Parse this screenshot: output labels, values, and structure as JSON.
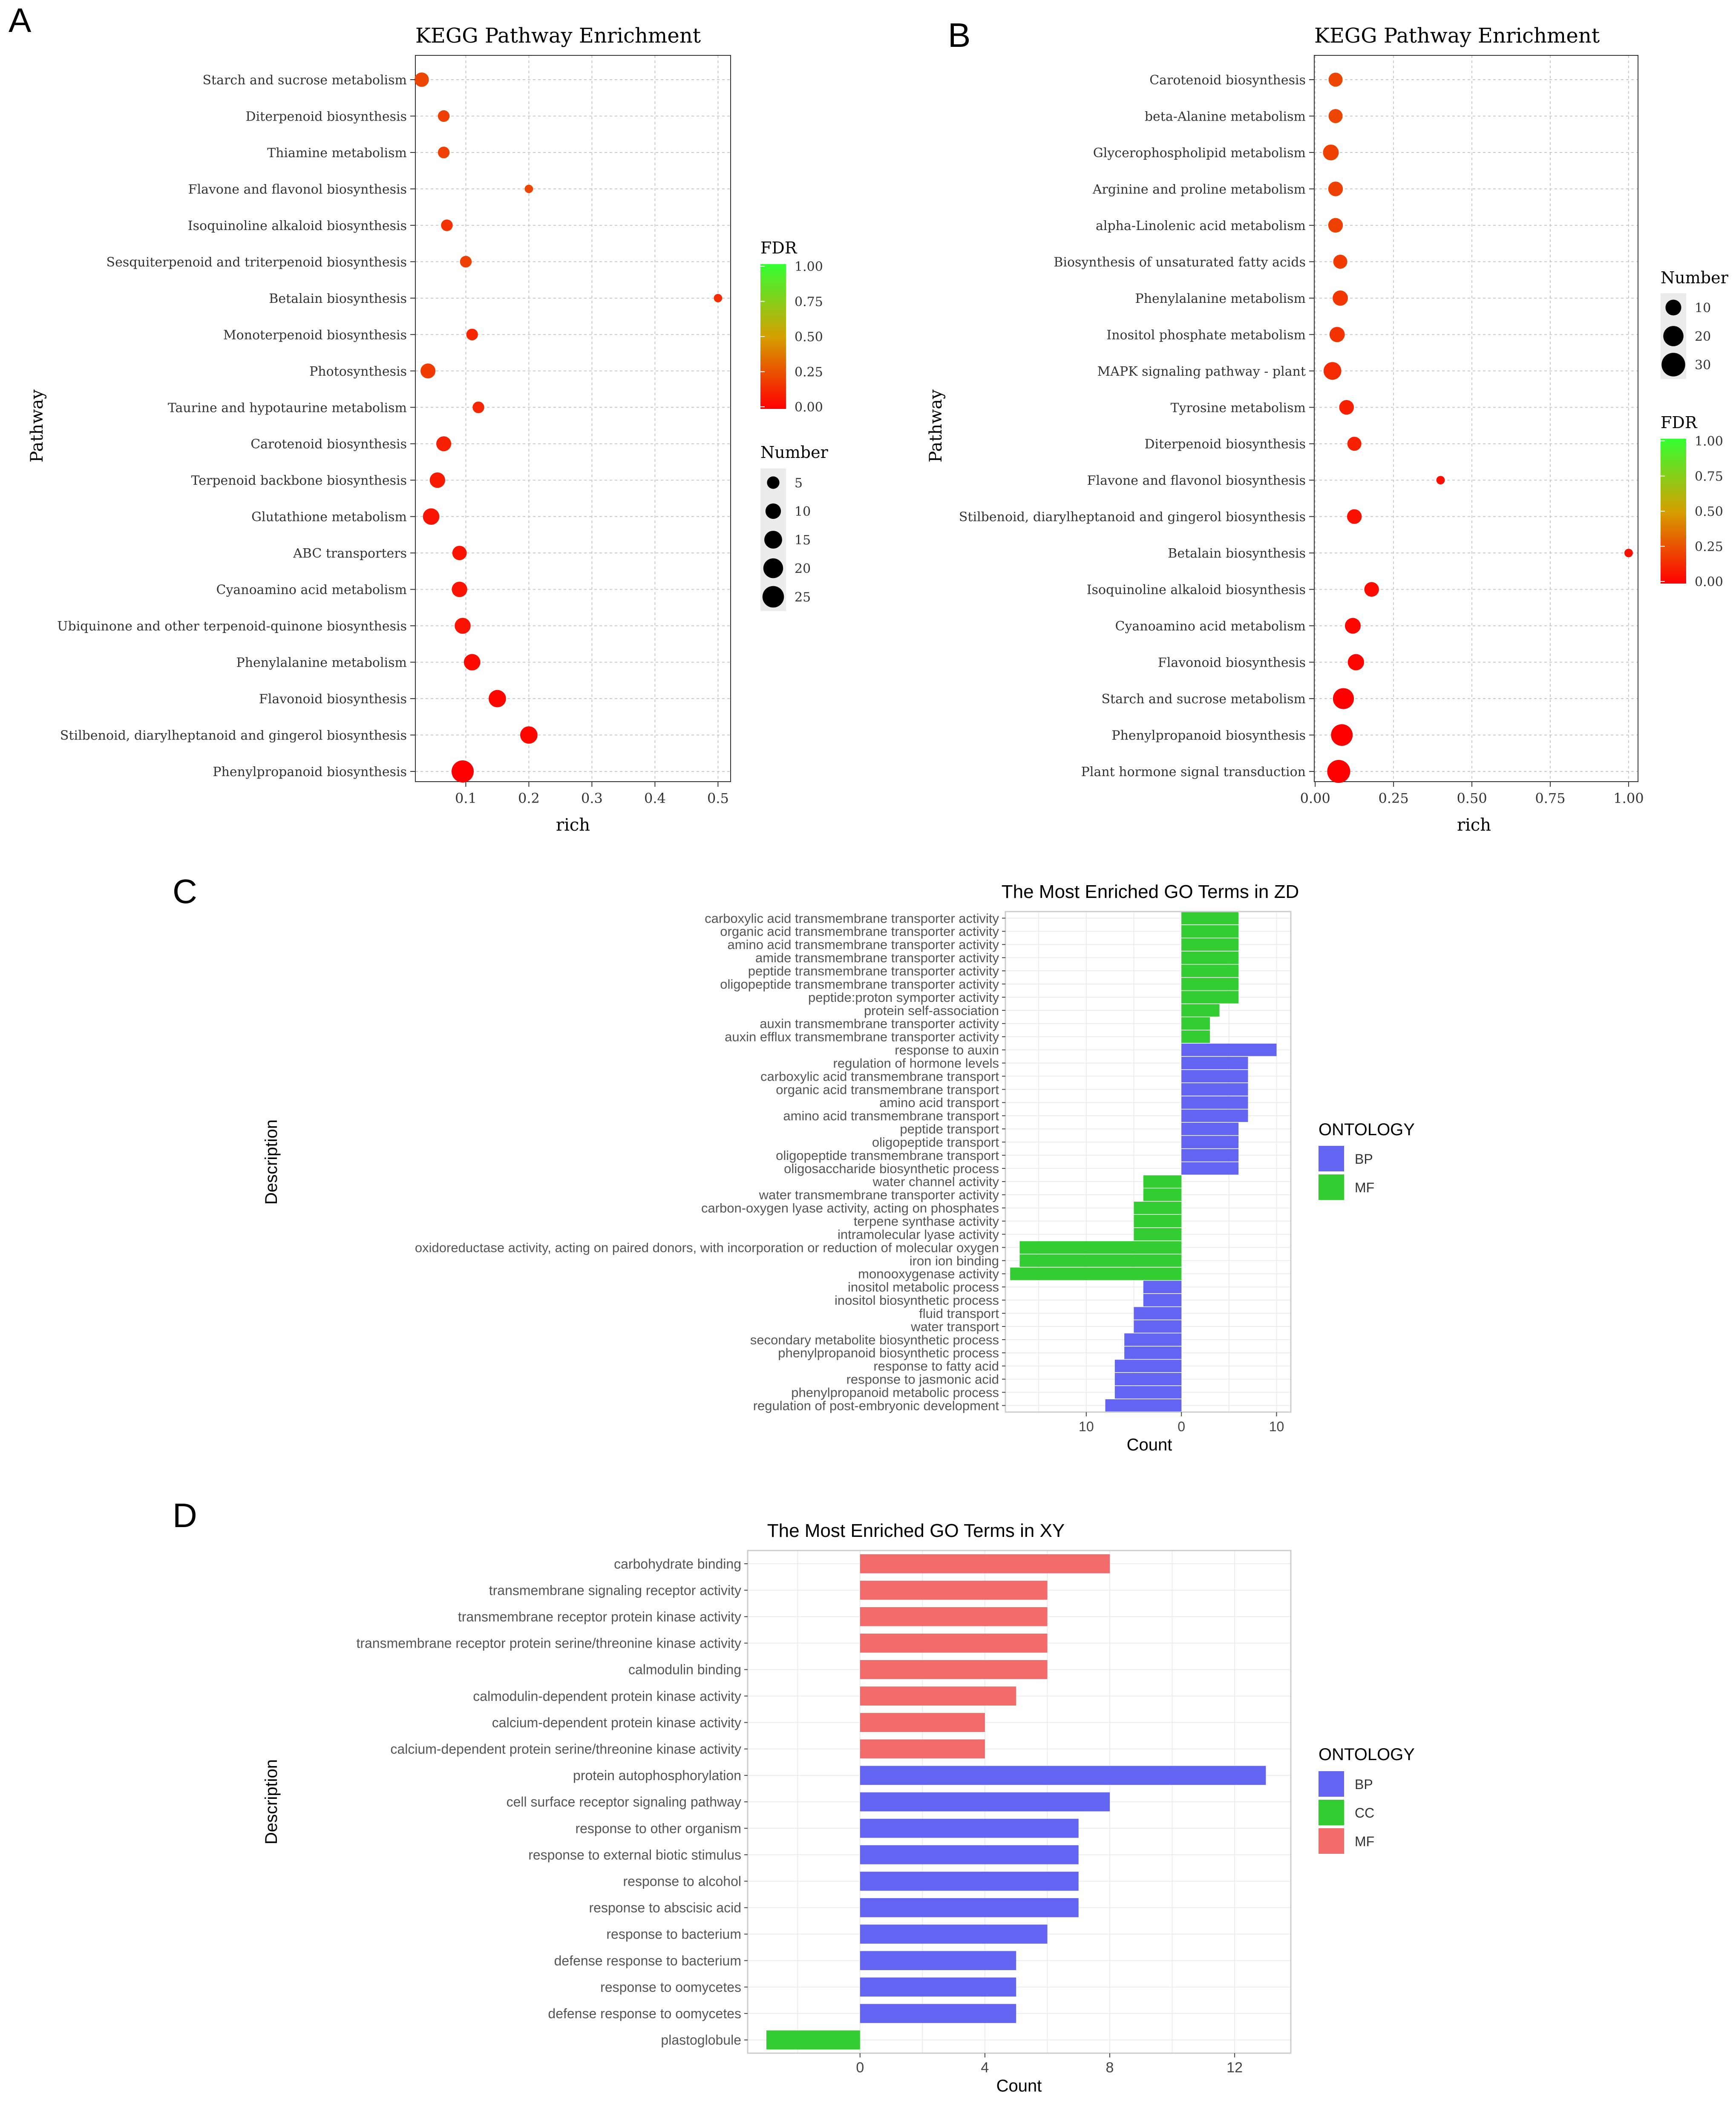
{
  "panel_labels": {
    "a": "A",
    "b": "B",
    "c": "C",
    "d": "D"
  },
  "chart_data": [
    {
      "id": "A",
      "type": "scatter",
      "title": "KEGG Pathway Enrichment",
      "xlabel": "rich",
      "ylabel": "Pathway",
      "xlim": [
        0.02,
        0.52
      ],
      "xticks": [
        0.1,
        0.2,
        0.3,
        0.4,
        0.5
      ],
      "xtick_labels": [
        "0.1",
        "0.2",
        "0.3",
        "0.4",
        "0.5"
      ],
      "categories": [
        "Starch and sucrose metabolism",
        "Diterpenoid biosynthesis",
        "Thiamine metabolism",
        "Flavone and flavonol biosynthesis",
        "Isoquinoline alkaloid biosynthesis",
        "Sesquiterpenoid and triterpenoid biosynthesis",
        "Betalain biosynthesis",
        "Monoterpenoid biosynthesis",
        "Photosynthesis",
        "Taurine and hypotaurine metabolism",
        "Carotenoid biosynthesis",
        "Terpenoid backbone biosynthesis",
        "Glutathione metabolism",
        "ABC transporters",
        "Cyanoamino acid metabolism",
        "Ubiquinone and other terpenoid-quinone biosynthesis",
        "Phenylalanine metabolism",
        "Flavonoid biosynthesis",
        "Stilbenoid, diarylheptanoid and gingerol biosynthesis",
        "Phenylpropanoid biosynthesis"
      ],
      "rich": [
        0.03,
        0.065,
        0.065,
        0.2,
        0.07,
        0.1,
        0.5,
        0.11,
        0.04,
        0.12,
        0.065,
        0.055,
        0.045,
        0.09,
        0.09,
        0.095,
        0.11,
        0.15,
        0.2,
        0.095
      ],
      "number": [
        8,
        4,
        4,
        1,
        4,
        4,
        1,
        4,
        9,
        4,
        9,
        10,
        12,
        8,
        10,
        11,
        12,
        14,
        14,
        27
      ],
      "fdr": [
        0.22,
        0.2,
        0.2,
        0.22,
        0.16,
        0.2,
        0.14,
        0.12,
        0.18,
        0.12,
        0.1,
        0.08,
        0.06,
        0.06,
        0.06,
        0.06,
        0.03,
        0.02,
        0.02,
        0.0
      ],
      "fdr_legend": {
        "title": "FDR",
        "labels": [
          "1.00",
          "0.75",
          "0.50",
          "0.25",
          "0.00"
        ],
        "low_color": "#ff0000",
        "high_color": "#33ff33"
      },
      "size_legend": {
        "title": "Number",
        "values": [
          5,
          10,
          15,
          20,
          25
        ],
        "labels": [
          "5",
          "10",
          "15",
          "20",
          "25"
        ]
      }
    },
    {
      "id": "B",
      "type": "scatter",
      "title": "KEGG Pathway Enrichment",
      "xlabel": "rich",
      "ylabel": "Pathway",
      "xlim": [
        -0.003,
        1.03
      ],
      "xticks": [
        0.0,
        0.25,
        0.5,
        0.75,
        1.0
      ],
      "xtick_labels": [
        "0.00",
        "0.25",
        "0.50",
        "0.75",
        "1.00"
      ],
      "categories": [
        "Carotenoid biosynthesis",
        "beta-Alanine metabolism",
        "Glycerophospholipid metabolism",
        "Arginine and proline metabolism",
        "alpha-Linolenic acid metabolism",
        "Biosynthesis of unsaturated fatty acids",
        "Phenylalanine metabolism",
        "Inositol phosphate metabolism",
        "MAPK signaling pathway - plant",
        "Tyrosine metabolism",
        "Diterpenoid biosynthesis",
        "Flavone and flavonol biosynthesis",
        "Stilbenoid, diarylheptanoid and gingerol biosynthesis",
        "Betalain biosynthesis",
        "Isoquinoline alkaloid biosynthesis",
        "Cyanoamino acid metabolism",
        "Flavonoid biosynthesis",
        "Starch and sucrose metabolism",
        "Phenylpropanoid biosynthesis",
        "Plant hormone signal transduction"
      ],
      "rich": [
        0.065,
        0.065,
        0.05,
        0.065,
        0.065,
        0.08,
        0.08,
        0.07,
        0.055,
        0.1,
        0.125,
        0.4,
        0.125,
        1.0,
        0.18,
        0.12,
        0.13,
        0.09,
        0.085,
        0.075
      ],
      "number": [
        7,
        7,
        10,
        8,
        8,
        7,
        9,
        9,
        14,
        8,
        7,
        1,
        8,
        1,
        8,
        10,
        11,
        22,
        24,
        28
      ],
      "fdr": [
        0.22,
        0.22,
        0.2,
        0.2,
        0.2,
        0.18,
        0.17,
        0.16,
        0.13,
        0.1,
        0.1,
        0.05,
        0.05,
        0.05,
        0.03,
        0.02,
        0.02,
        0.0,
        0.0,
        0.0
      ],
      "fdr_legend": {
        "title": "FDR",
        "labels": [
          "1.00",
          "0.75",
          "0.50",
          "0.25",
          "0.00"
        ],
        "low_color": "#ff0000",
        "high_color": "#33ff33"
      },
      "size_legend": {
        "title": "Number",
        "values": [
          10,
          20,
          30
        ],
        "labels": [
          "10",
          "20",
          "30"
        ]
      }
    },
    {
      "id": "C",
      "type": "bar",
      "orientation": "horizontal",
      "title": "The Most Enriched GO Terms in ZD",
      "xlabel": "Count",
      "ylabel": "Description",
      "xlim": [
        -18.5,
        11.5
      ],
      "xticks": [
        -10,
        0,
        10
      ],
      "xtick_labels": [
        "10",
        "0",
        "10"
      ],
      "categories": [
        "carboxylic acid transmembrane transporter activity",
        "organic acid transmembrane transporter activity",
        "amino acid transmembrane transporter activity",
        "amide transmembrane transporter activity",
        "peptide transmembrane transporter activity",
        "oligopeptide transmembrane transporter activity",
        "peptide:proton symporter activity",
        "protein self-association",
        "auxin transmembrane transporter activity",
        "auxin efflux transmembrane transporter activity",
        "response to auxin",
        "regulation of hormone levels",
        "carboxylic acid transmembrane transport",
        "organic acid transmembrane transport",
        "amino acid transport",
        "amino acid transmembrane transport",
        "peptide transport",
        "oligopeptide transport",
        "oligopeptide transmembrane transport",
        "oligosaccharide biosynthetic process",
        "water channel activity",
        "water transmembrane transporter activity",
        "carbon-oxygen lyase activity, acting on phosphates",
        "terpene synthase activity",
        "intramolecular lyase activity",
        "oxidoreductase activity, acting on paired donors, with incorporation or reduction of molecular oxygen",
        "iron ion binding",
        "monooxygenase activity",
        "inositol metabolic process",
        "inositol biosynthetic process",
        "fluid transport",
        "water transport",
        "secondary metabolite biosynthetic process",
        "phenylpropanoid biosynthetic process",
        "response to fatty acid",
        "response to jasmonic acid",
        "phenylpropanoid metabolic process",
        "regulation of post-embryonic development"
      ],
      "values": [
        6,
        6,
        6,
        6,
        6,
        6,
        6,
        4,
        3,
        3,
        10,
        7,
        7,
        7,
        7,
        7,
        6,
        6,
        6,
        6,
        -4,
        -4,
        -5,
        -5,
        -5,
        -17,
        -17,
        -18,
        -4,
        -4,
        -5,
        -5,
        -6,
        -6,
        -7,
        -7,
        -7,
        -8
      ],
      "ontology": [
        "MF",
        "MF",
        "MF",
        "MF",
        "MF",
        "MF",
        "MF",
        "MF",
        "MF",
        "MF",
        "BP",
        "BP",
        "BP",
        "BP",
        "BP",
        "BP",
        "BP",
        "BP",
        "BP",
        "BP",
        "MF",
        "MF",
        "MF",
        "MF",
        "MF",
        "MF",
        "MF",
        "MF",
        "BP",
        "BP",
        "BP",
        "BP",
        "BP",
        "BP",
        "BP",
        "BP",
        "BP",
        "BP"
      ],
      "legend": {
        "title": "ONTOLOGY",
        "items": [
          {
            "label": "BP",
            "color": "#6464f2"
          },
          {
            "label": "MF",
            "color": "#33cc33"
          }
        ]
      }
    },
    {
      "id": "D",
      "type": "bar",
      "orientation": "horizontal",
      "title": "The Most Enriched GO Terms in XY",
      "xlabel": "Count",
      "ylabel": "Description",
      "xlim": [
        -3.6,
        13.8
      ],
      "xticks": [
        0,
        4,
        8,
        12
      ],
      "xtick_labels": [
        "0",
        "4",
        "8",
        "12"
      ],
      "categories": [
        "carbohydrate binding",
        "transmembrane signaling receptor activity",
        "transmembrane receptor protein kinase activity",
        "transmembrane receptor protein serine/threonine kinase activity",
        "calmodulin binding",
        "calmodulin-dependent protein kinase activity",
        "calcium-dependent protein kinase activity",
        "calcium-dependent protein serine/threonine kinase activity",
        "protein autophosphorylation",
        "cell surface receptor signaling pathway",
        "response to other organism",
        "response to external biotic stimulus",
        "response to alcohol",
        "response to abscisic acid",
        "response to bacterium",
        "defense response to bacterium",
        "response to oomycetes",
        "defense response to oomycetes",
        "plastoglobule"
      ],
      "values": [
        8,
        6,
        6,
        6,
        6,
        5,
        4,
        4,
        13,
        8,
        7,
        7,
        7,
        7,
        6,
        5,
        5,
        5,
        -3
      ],
      "ontology": [
        "MF",
        "MF",
        "MF",
        "MF",
        "MF",
        "MF",
        "MF",
        "MF",
        "BP",
        "BP",
        "BP",
        "BP",
        "BP",
        "BP",
        "BP",
        "BP",
        "BP",
        "BP",
        "CC"
      ],
      "legend": {
        "title": "ONTOLOGY",
        "items": [
          {
            "label": "BP",
            "color": "#6464f2"
          },
          {
            "label": "CC",
            "color": "#33cc33"
          },
          {
            "label": "MF",
            "color": "#f26a6a"
          }
        ]
      }
    }
  ]
}
